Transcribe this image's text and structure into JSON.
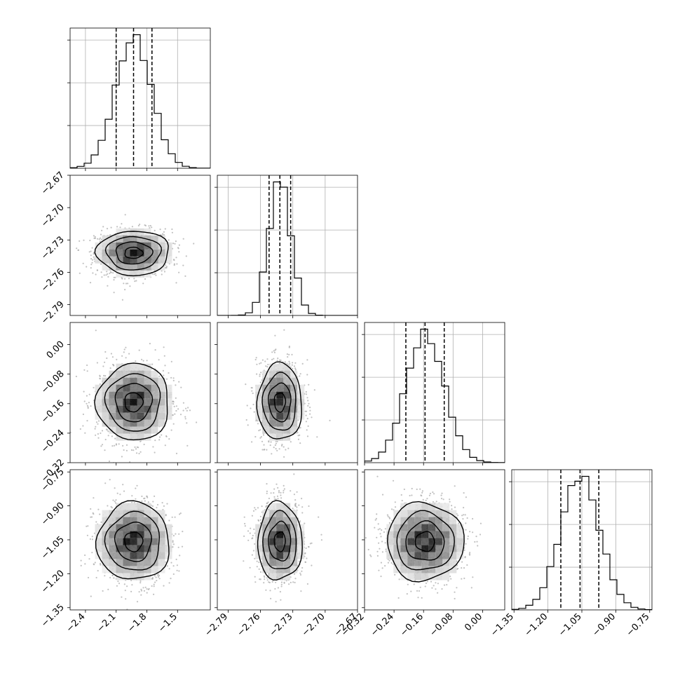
{
  "chart_data": {
    "type": "corner",
    "parameters": [
      {
        "ticks": [
          -2.4,
          -2.1,
          -1.8,
          -1.5
        ],
        "tick_labels": [
          "−2.4",
          "−2.1",
          "−1.8",
          "−1.5"
        ],
        "range": [
          -2.55,
          -1.18
        ],
        "mean": -1.93,
        "sigma": 0.177,
        "quantiles": [
          -2.1,
          -1.93,
          -1.75
        ]
      },
      {
        "ticks": [
          -2.79,
          -2.76,
          -2.73,
          -2.7,
          -2.67
        ],
        "tick_labels": [
          "−2.79",
          "−2.76",
          "−2.73",
          "−2.70",
          "−2.67"
        ],
        "range": [
          -2.8,
          -2.67
        ],
        "mean": -2.742,
        "sigma": 0.0103,
        "quantiles": [
          -2.752,
          -2.742,
          -2.732
        ]
      },
      {
        "ticks": [
          -0.32,
          -0.24,
          -0.16,
          -0.08,
          0.0
        ],
        "tick_labels": [
          "−0.32",
          "−0.24",
          "−0.16",
          "−0.08",
          "0.00"
        ],
        "range": [
          -0.32,
          0.06
        ],
        "mean": -0.156,
        "sigma": 0.052,
        "quantiles": [
          -0.208,
          -0.156,
          -0.104
        ]
      },
      {
        "ticks": [
          -1.35,
          -1.2,
          -1.05,
          -0.9,
          -0.75
        ],
        "tick_labels": [
          "−1.35",
          "−1.20",
          "−1.05",
          "−0.90",
          "−0.75"
        ],
        "range": [
          -1.36,
          -0.74
        ],
        "mean": -1.058,
        "sigma": 0.086,
        "quantiles": [
          -1.143,
          -1.058,
          -0.975
        ]
      }
    ],
    "histogram_bins": 20,
    "grid": true,
    "quantile_lines": "dashed",
    "contour_levels_sigma": [
      0.5,
      1.0,
      1.5,
      2.0
    ],
    "colors": {
      "lines": "#000000",
      "grid": "#b0b0b0",
      "samples": "#a8a8a8"
    }
  }
}
